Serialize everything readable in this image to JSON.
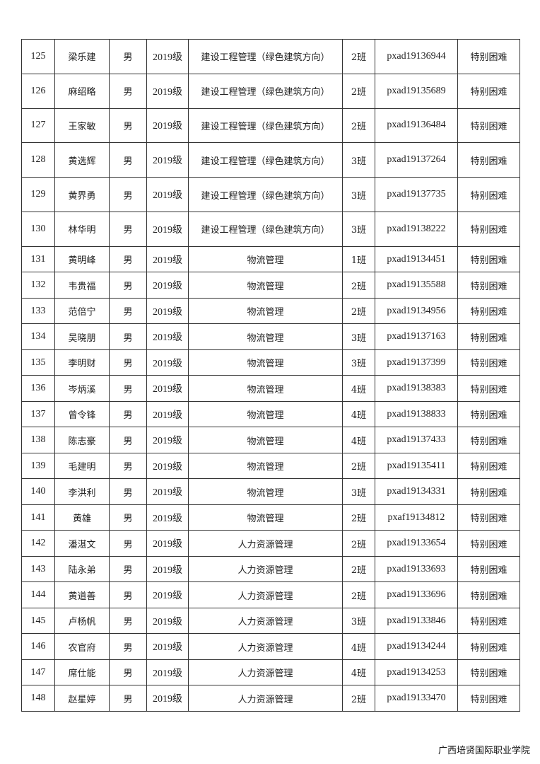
{
  "table": {
    "rows": [
      [
        "125",
        "梁乐建",
        "男",
        "2019级",
        "建设工程管理（绿色建筑方向）",
        "2班",
        "pxad19136944",
        "特别困难"
      ],
      [
        "126",
        "麻绍略",
        "男",
        "2019级",
        "建设工程管理（绿色建筑方向）",
        "2班",
        "pxad19135689",
        "特别困难"
      ],
      [
        "127",
        "王家敏",
        "男",
        "2019级",
        "建设工程管理（绿色建筑方向）",
        "2班",
        "pxad19136484",
        "特别困难"
      ],
      [
        "128",
        "黄选辉",
        "男",
        "2019级",
        "建设工程管理（绿色建筑方向）",
        "3班",
        "pxad19137264",
        "特别困难"
      ],
      [
        "129",
        "黄界勇",
        "男",
        "2019级",
        "建设工程管理（绿色建筑方向）",
        "3班",
        "pxad19137735",
        "特别困难"
      ],
      [
        "130",
        "林华明",
        "男",
        "2019级",
        "建设工程管理（绿色建筑方向）",
        "3班",
        "pxad19138222",
        "特别困难"
      ],
      [
        "131",
        "黄明峰",
        "男",
        "2019级",
        "物流管理",
        "1班",
        "pxad19134451",
        "特别困难"
      ],
      [
        "132",
        "韦贵福",
        "男",
        "2019级",
        "物流管理",
        "2班",
        "pxad19135588",
        "特别困难"
      ],
      [
        "133",
        "范倍宁",
        "男",
        "2019级",
        "物流管理",
        "2班",
        "pxad19134956",
        "特别困难"
      ],
      [
        "134",
        "吴晓朋",
        "男",
        "2019级",
        "物流管理",
        "3班",
        "pxad19137163",
        "特别困难"
      ],
      [
        "135",
        "李明财",
        "男",
        "2019级",
        "物流管理",
        "3班",
        "pxad19137399",
        "特别困难"
      ],
      [
        "136",
        "岑炳溪",
        "男",
        "2019级",
        "物流管理",
        "4班",
        "pxad19138383",
        "特别困难"
      ],
      [
        "137",
        "曾令锋",
        "男",
        "2019级",
        "物流管理",
        "4班",
        "pxad19138833",
        "特别困难"
      ],
      [
        "138",
        "陈志豪",
        "男",
        "2019级",
        "物流管理",
        "4班",
        "pxad19137433",
        "特别困难"
      ],
      [
        "139",
        "毛建明",
        "男",
        "2019级",
        "物流管理",
        "2班",
        "pxad19135411",
        "特别困难"
      ],
      [
        "140",
        "李洪利",
        "男",
        "2019级",
        "物流管理",
        "3班",
        "pxad19134331",
        "特别困难"
      ],
      [
        "141",
        "黄雄",
        "男",
        "2019级",
        "物流管理",
        "2班",
        "pxaf19134812",
        "特别困难"
      ],
      [
        "142",
        "潘湛文",
        "男",
        "2019级",
        "人力资源管理",
        "2班",
        "pxad19133654",
        "特别困难"
      ],
      [
        "143",
        "陆永弟",
        "男",
        "2019级",
        "人力资源管理",
        "2班",
        "pxad19133693",
        "特别困难"
      ],
      [
        "144",
        "黄道善",
        "男",
        "2019级",
        "人力资源管理",
        "2班",
        "pxad19133696",
        "特别困难"
      ],
      [
        "145",
        "卢杨帆",
        "男",
        "2019级",
        "人力资源管理",
        "3班",
        "pxad19133846",
        "特别困难"
      ],
      [
        "146",
        "农官府",
        "男",
        "2019级",
        "人力资源管理",
        "4班",
        "pxad19134244",
        "特别困难"
      ],
      [
        "147",
        "席仕能",
        "男",
        "2019级",
        "人力资源管理",
        "4班",
        "pxad19134253",
        "特别困难"
      ],
      [
        "148",
        "赵星婷",
        "男",
        "2019级",
        "人力资源管理",
        "2班",
        "pxad19133470",
        "特别困难"
      ]
    ]
  },
  "footer": {
    "institution": "广西培贤国际职业学院"
  }
}
